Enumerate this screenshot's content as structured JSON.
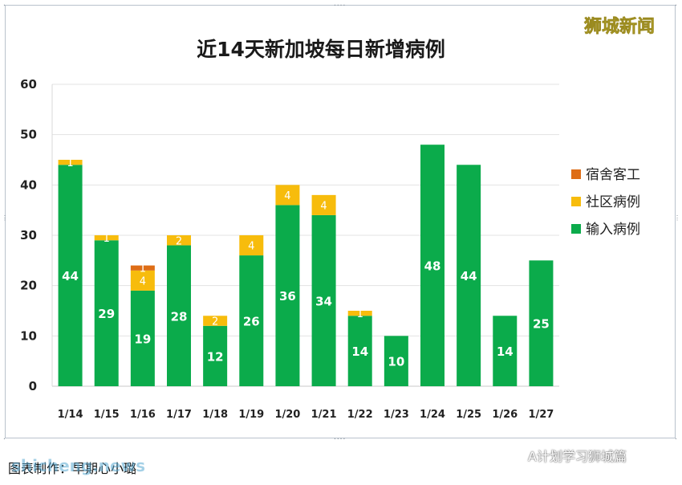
{
  "watermark": {
    "brand": "狮城新闻",
    "site": "shicheng.news",
    "account": "A计划学习狮城篇"
  },
  "credit": "图表制作：早期心小璐",
  "colors": {
    "import": "#0bab4b",
    "community": "#f7bc0c",
    "dorm": "#de6d16"
  },
  "chart_data": {
    "type": "bar",
    "stacked": true,
    "title": "近14天新加坡每日新增病例",
    "xlabel": "",
    "ylabel": "",
    "ylim": [
      0,
      60
    ],
    "yticks": [
      "0",
      "10",
      "20",
      "30",
      "40",
      "50",
      "60"
    ],
    "grid": true,
    "legend_position": "right",
    "categories": [
      "1/14",
      "1/15",
      "1/16",
      "1/17",
      "1/18",
      "1/19",
      "1/20",
      "1/21",
      "1/22",
      "1/23",
      "1/24",
      "1/25",
      "1/26",
      "1/27"
    ],
    "series": [
      {
        "name": "输入病例",
        "color": "#0bab4b",
        "values": [
          44,
          29,
          19,
          28,
          12,
          26,
          36,
          34,
          14,
          10,
          48,
          44,
          14,
          25
        ],
        "labels": [
          "44",
          "29",
          "19",
          "28",
          "12",
          "26",
          "36",
          "34",
          "14",
          "10",
          "48",
          "44",
          "14",
          "25"
        ]
      },
      {
        "name": "社区病例",
        "color": "#f7bc0c",
        "values": [
          1,
          1,
          4,
          2,
          2,
          4,
          4,
          4,
          1,
          0,
          0,
          0,
          0,
          0
        ],
        "labels": [
          "1",
          "1",
          "4",
          "2",
          "2",
          "4",
          "4",
          "4",
          "1",
          "",
          "",
          "",
          "",
          ""
        ]
      },
      {
        "name": "宿舍客工",
        "color": "#de6d16",
        "values": [
          0,
          0,
          1,
          0,
          0,
          0,
          0,
          0,
          0,
          0,
          0,
          0,
          0,
          0
        ],
        "labels": [
          "",
          "",
          "1",
          "",
          "",
          "",
          "",
          "",
          "",
          "",
          "",
          "",
          "",
          ""
        ]
      }
    ],
    "legend_order": [
      "宿舍客工",
      "社区病例",
      "输入病例"
    ]
  }
}
